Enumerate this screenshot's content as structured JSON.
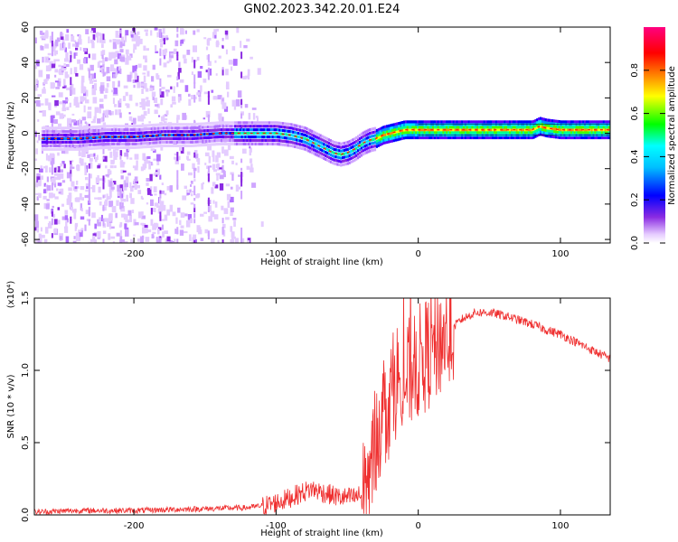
{
  "figure": {
    "title": "GN02.2023.342.20.01.E24"
  },
  "chart_data": [
    {
      "type": "heatmap",
      "xlabel": "Height of straight line (km)",
      "ylabel": "Frequency (Hz)",
      "xlim": [
        -270,
        135
      ],
      "ylim": [
        -62,
        60
      ],
      "xticks": [
        -200,
        -100,
        0,
        100
      ],
      "xtick_labels": [
        "-200",
        "-100",
        "0",
        "100"
      ],
      "yticks": [
        60,
        40,
        20,
        0,
        -20,
        -40,
        -60
      ],
      "ytick_labels": [
        "60",
        "40",
        "20",
        "0",
        "-20",
        "-40",
        "-60"
      ],
      "colorbar": {
        "label": "Normalized spectral amplitude",
        "ticks": [
          0.0,
          0.2,
          0.4,
          0.6,
          0.8
        ],
        "tick_labels": [
          "0.0",
          "0.2",
          "0.4",
          "0.6",
          "0.8"
        ],
        "range": [
          0,
          1
        ]
      },
      "ridge": {
        "x": [
          -260,
          -240,
          -220,
          -200,
          -180,
          -160,
          -140,
          -120,
          -100,
          -90,
          -80,
          -70,
          -60,
          -55,
          -50,
          -45,
          -40,
          -35,
          -30,
          -25,
          -20,
          -15,
          -10,
          -5,
          0,
          20,
          40,
          60,
          80,
          85,
          90,
          100,
          110,
          135
        ],
        "y": [
          -3,
          -3,
          -2,
          -2,
          -1,
          -1,
          0,
          0,
          0,
          -1,
          -3,
          -7,
          -11,
          -12,
          -11,
          -9,
          -6,
          -4,
          -3,
          -1,
          0,
          1,
          2,
          2,
          2,
          2,
          2,
          2,
          2,
          4,
          3,
          2,
          2,
          2
        ]
      },
      "grid": false
    },
    {
      "type": "line",
      "xlabel": "Height of straight line (km)",
      "ylabel": "SNR (10 * v/v)",
      "y_multiplier_label": "(x10⁴)",
      "xlim": [
        -270,
        135
      ],
      "ylim": [
        0,
        1.5
      ],
      "xticks": [
        -200,
        -100,
        0,
        100
      ],
      "xtick_labels": [
        "-200",
        "-100",
        "0",
        "100"
      ],
      "yticks": [
        0,
        0.5,
        1.0,
        1.5
      ],
      "ytick_labels": [
        "0.0",
        "0.5",
        "1.0",
        "1.5"
      ],
      "color": "#ef2f2f",
      "series": [
        {
          "x": [
            -270,
            -240,
            -200,
            -160,
            -120,
            -105,
            -95,
            -85,
            -75,
            -65,
            -55,
            -45,
            -40,
            -35,
            -32,
            -30,
            -25,
            -20,
            -15,
            -10,
            -5,
            0,
            5,
            10,
            15,
            20,
            30,
            40,
            50,
            60,
            70,
            80,
            90,
            100,
            110,
            120,
            135
          ],
          "y": [
            0.02,
            0.03,
            0.03,
            0.04,
            0.05,
            0.07,
            0.1,
            0.14,
            0.18,
            0.15,
            0.12,
            0.12,
            0.14,
            0.2,
            0.4,
            0.55,
            0.7,
            0.8,
            0.95,
            0.9,
            1.0,
            1.05,
            1.1,
            1.15,
            1.2,
            1.25,
            1.35,
            1.4,
            1.4,
            1.38,
            1.35,
            1.32,
            1.28,
            1.25,
            1.2,
            1.15,
            1.08
          ]
        }
      ],
      "grid": false
    }
  ]
}
